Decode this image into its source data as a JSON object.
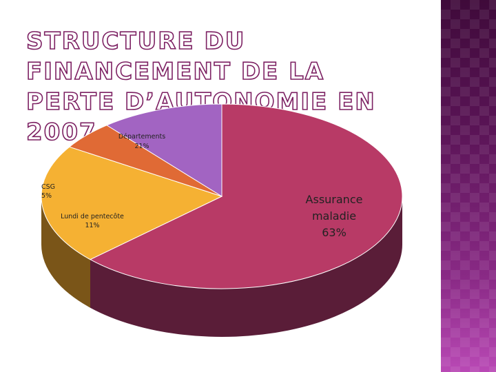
{
  "title": "STRUCTURE DU FINANCEMENT DE LA PERTE D’AUTONOMIE EN 2007",
  "chart_data": {
    "type": "pie",
    "title": "STRUCTURE DU FINANCEMENT DE LA PERTE D’AUTONOMIE EN 2007",
    "categories": [
      "Assurance maladie",
      "Départements",
      "CSG",
      "Lundi de pentecôte"
    ],
    "values": [
      63,
      21,
      5,
      11
    ],
    "labels": [
      {
        "name": "Assurance maladie",
        "text": "Assurance maladie",
        "pct": "63%"
      },
      {
        "name": "Départements",
        "text": "Départements",
        "pct": "21%"
      },
      {
        "name": "CSG",
        "text": "CSG",
        "pct": "5%"
      },
      {
        "name": "Lundi de pentecôte",
        "text": "Lundi de pentecôte",
        "pct": "11%"
      }
    ],
    "colors": [
      "#b83a66",
      "#f5b133",
      "#e06a35",
      "#a264c2"
    ],
    "side_colors": [
      "#5a1d38",
      "#7a5518",
      "#6e3418",
      "#4e3060"
    ],
    "style": "3d-exploded-pie"
  },
  "side_panel": {
    "colors": [
      "#3f0a3a",
      "#8a2a86",
      "#b949b5"
    ]
  }
}
